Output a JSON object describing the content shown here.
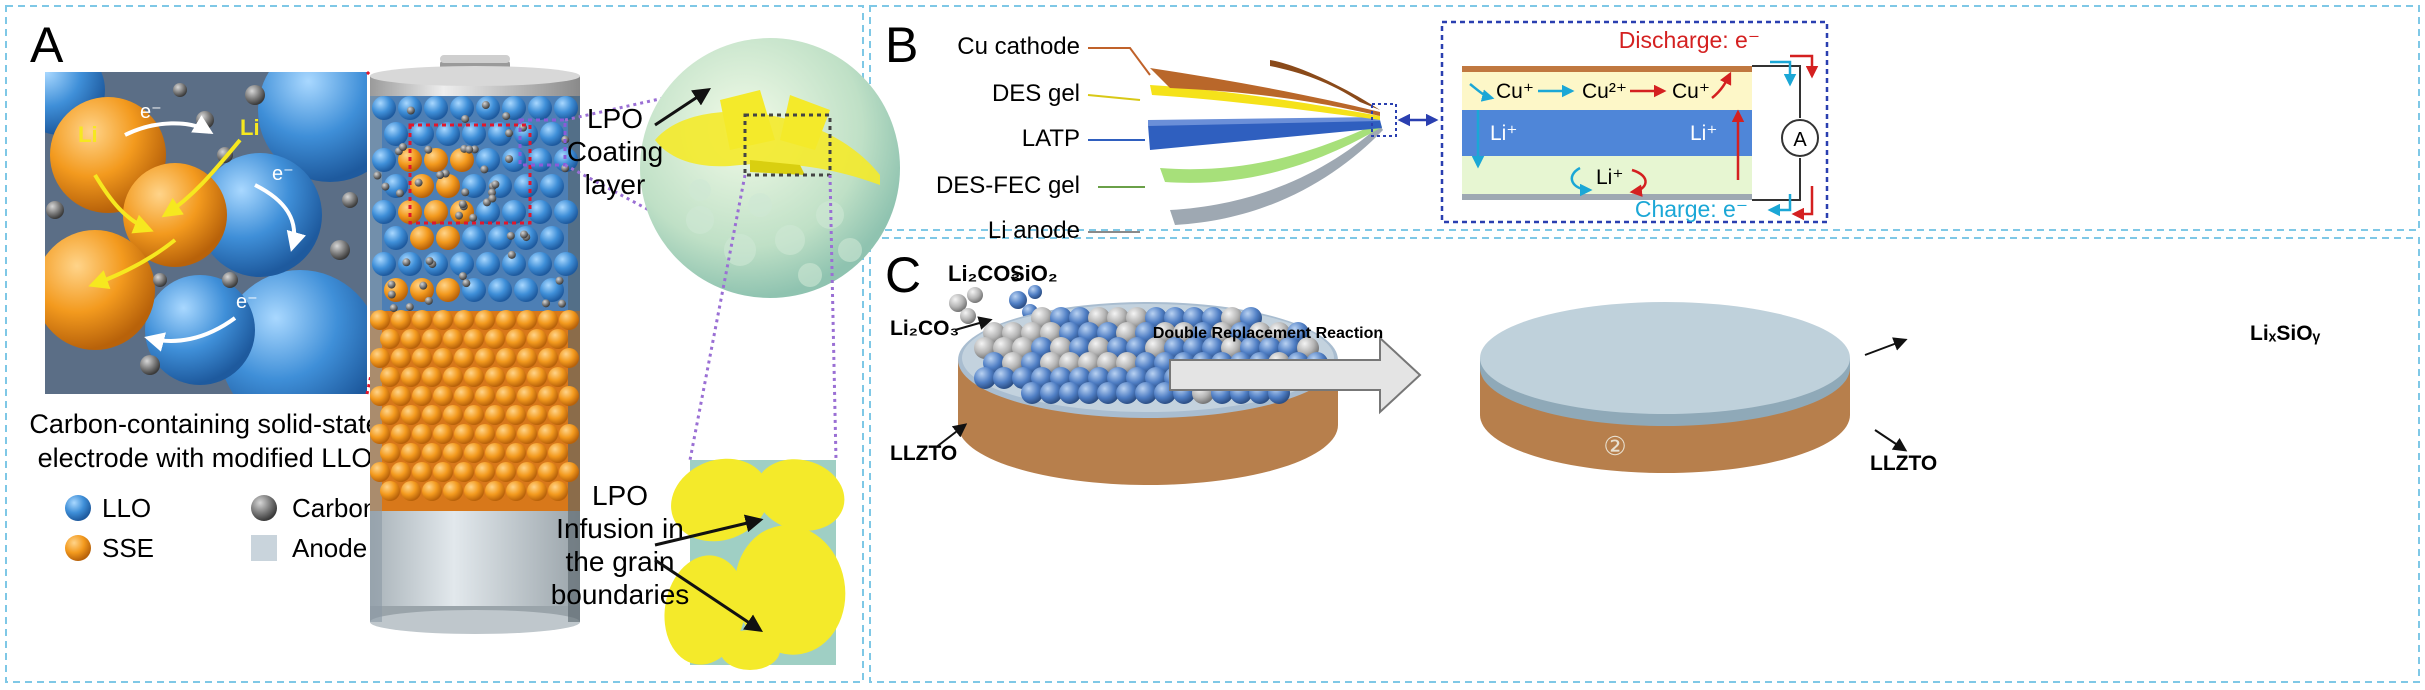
{
  "panels": {
    "a": {
      "letter": "A",
      "zoom_labels": {
        "li_left": "Li",
        "li_right": "Li",
        "electron": "e⁻"
      },
      "caption_line1": "Carbon-containing solid-state",
      "caption_line2": "electrode with modified LLO",
      "legend": {
        "llo": "LLO",
        "sse": "SSE",
        "carbon": "Carbon",
        "anode": "Anode"
      },
      "callout_top": [
        "LPO",
        "Coating",
        "layer"
      ],
      "callout_bottom": [
        "LPO",
        "Infusion in",
        "the grain",
        "boundaries"
      ]
    },
    "b": {
      "letter": "B",
      "layers": [
        "Cu cathode",
        "DES gel",
        "LATP",
        "DES-FEC gel",
        "Li anode"
      ],
      "inset": {
        "discharge": "Discharge: e⁻",
        "charge": "Charge: e⁻",
        "cu1": "Cu⁺",
        "cu2": "Cu²⁺",
        "cu3": "Cu⁺",
        "li_left": "Li⁺",
        "li_right": "Li⁺",
        "li_mid": "Li⁺",
        "ammeter": "A"
      }
    },
    "c": {
      "letter": "C",
      "reactant1": "Li₂CO₃",
      "reactant2": "SiO₂",
      "label_li2co3": "Li₂CO₃",
      "label_llzto_left": "LLZTO",
      "arrow_text": "Double Replacement Reaction",
      "label_lixsioy": "LiₓSiOᵧ",
      "label_llzto_right": "LLZTO",
      "circled_number": "②"
    }
  },
  "colors": {
    "frame": "#7fc8e6",
    "llo_blue": "#3f8fd8",
    "sse_orange": "#f39a1e",
    "carbon_gray": "#6e6e6e",
    "anode_gray": "#c9d4dc",
    "lpo_yellow": "#f4ea2a",
    "lpo_green": "#bfe0c6",
    "latp_blue": "#2f5fbf",
    "des_yellow": "#f5e21a",
    "fec_green": "#a7e07a",
    "cu_brown": "#b9672a"
  }
}
